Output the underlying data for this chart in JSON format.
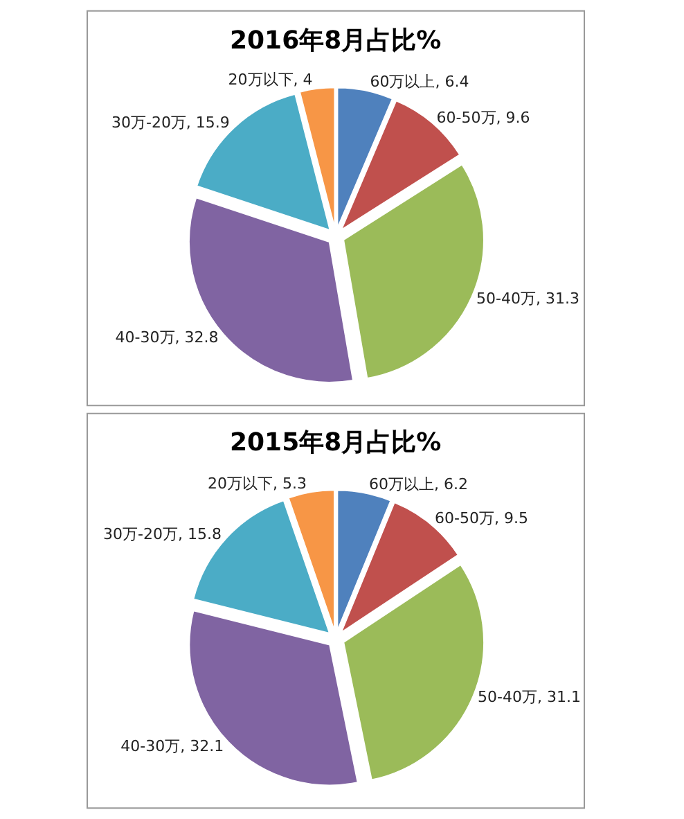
{
  "chart_data": [
    {
      "type": "pie",
      "title": "2016年8月占比%",
      "categories": [
        "60万以上",
        "60-50万",
        "50-40万",
        "40-30万",
        "30万-20万",
        "20万以下"
      ],
      "values": [
        6.4,
        9.6,
        31.3,
        32.8,
        15.9,
        4
      ],
      "colors": [
        "#4f81bd",
        "#c0504d",
        "#9bbb59",
        "#8064a2",
        "#4bacc6",
        "#f79646"
      ],
      "value_labels": [
        ", 6.4",
        ", 9.6",
        ", 31.3",
        ", 32.8",
        ", 15.9",
        ", 4"
      ],
      "legend": false
    },
    {
      "type": "pie",
      "title": "2015年8月占比%",
      "categories": [
        "60万以上",
        "60-50万",
        "50-40万",
        "40-30万",
        "30万-20万",
        "20万以下"
      ],
      "values": [
        6.2,
        9.5,
        31.1,
        32.1,
        15.8,
        5.3
      ],
      "colors": [
        "#4f81bd",
        "#c0504d",
        "#9bbb59",
        "#8064a2",
        "#4bacc6",
        "#f79646"
      ],
      "value_labels": [
        ", 6.2",
        ", 9.5",
        ", 31.1",
        ", 32.1",
        ", 15.8",
        ", 5.3"
      ],
      "legend": false
    }
  ]
}
